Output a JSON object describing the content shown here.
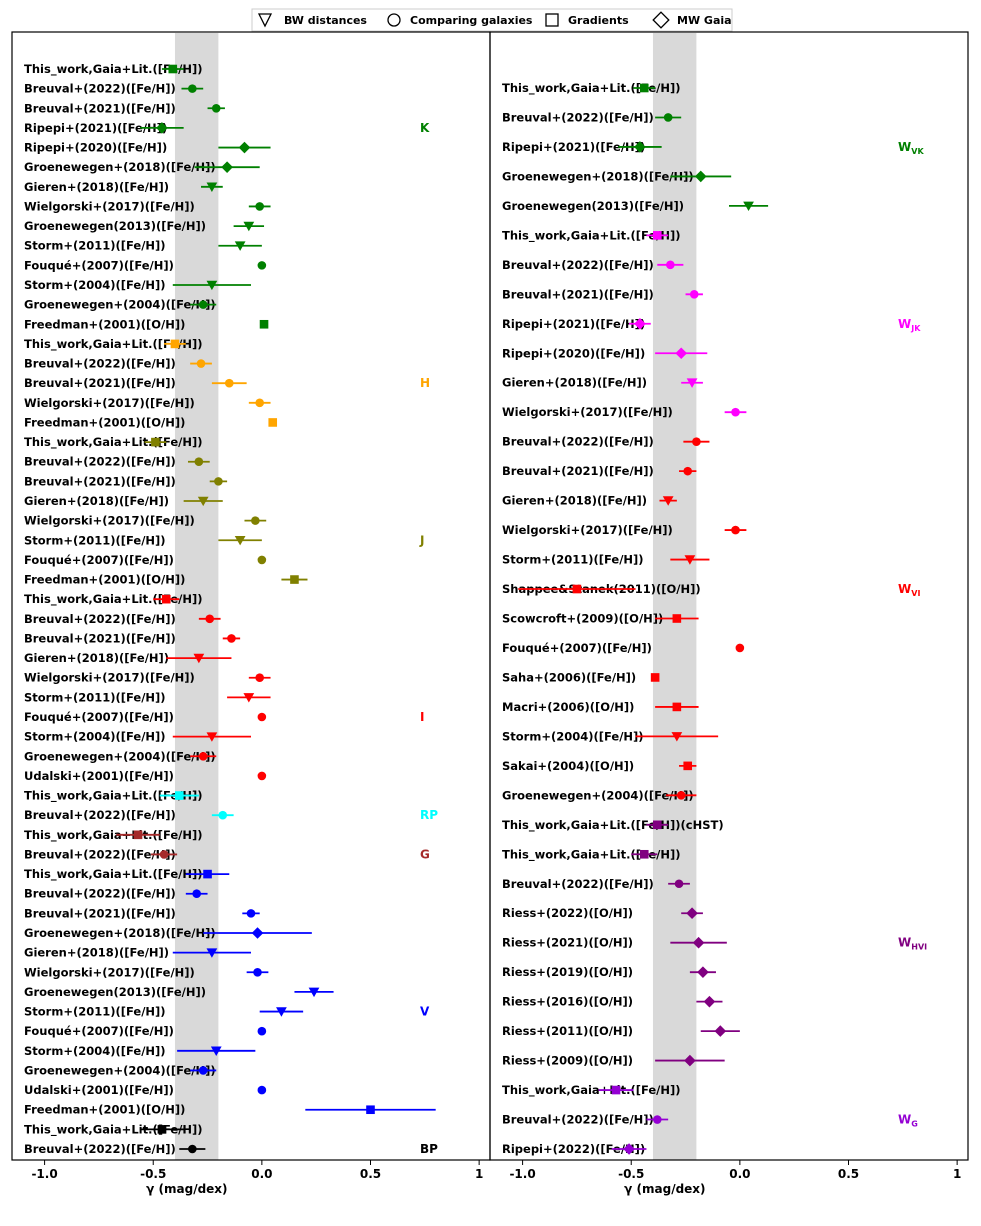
{
  "legend": [
    {
      "marker": "triangle-down",
      "label": "BW distances"
    },
    {
      "marker": "circle",
      "label": "Comparing galaxies"
    },
    {
      "marker": "square",
      "label": "Gradients"
    },
    {
      "marker": "diamond",
      "label": "MW Gaia"
    }
  ],
  "colors": {
    "K": "#008000",
    "H": "#ffa500",
    "J": "#808000",
    "I": "#ff0000",
    "RP": "#00ffff",
    "G": "#a52a2a",
    "V": "#0000ff",
    "BP": "#000000",
    "WVK": "#008000",
    "WJK": "#ff00ff",
    "WVI": "#ff0000",
    "WHVI": "#800080",
    "WG": "#9400d3",
    "band": "#d9d9d9"
  },
  "chart_data": [
    {
      "type": "scatter",
      "panel": "left",
      "xlabel": "γ (mag/dex)",
      "xlim": [
        -1.15,
        1.05
      ],
      "xticks": [
        -1.0,
        -0.5,
        0.0,
        0.5,
        1.0
      ],
      "xtick_labels": [
        "-1.0",
        "-0.5",
        "0.0",
        "0.5",
        "1"
      ],
      "shaded_band": [
        -0.4,
        -0.2
      ],
      "band_labels": [
        {
          "text": "K",
          "color": "#008000",
          "row": 3
        },
        {
          "text": "H",
          "color": "#ffa500",
          "row": 16
        },
        {
          "text": "J",
          "color": "#808000",
          "row": 24
        },
        {
          "text": "I",
          "color": "#ff0000",
          "row": 33
        },
        {
          "text": "RP",
          "color": "#00ffff",
          "row": 38
        },
        {
          "text": "G",
          "color": "#a52a2a",
          "row": 40
        },
        {
          "text": "V",
          "color": "#0000ff",
          "row": 48
        },
        {
          "text": "BP",
          "color": "#000000",
          "row": 55
        }
      ],
      "rows": [
        {
          "label": "This_work,Gaia+Lit.([Fe/H])",
          "x": -0.41,
          "err": 0.05,
          "marker": "square",
          "color": "#008000"
        },
        {
          "label": "Breuval+(2022)([Fe/H])",
          "x": -0.32,
          "err": 0.05,
          "marker": "circle",
          "color": "#008000"
        },
        {
          "label": "Breuval+(2021)([Fe/H])",
          "x": -0.21,
          "err": 0.04,
          "marker": "circle",
          "color": "#008000"
        },
        {
          "label": "Ripepi+(2021)([Fe/H])",
          "x": -0.46,
          "err": 0.1,
          "marker": "diamond",
          "color": "#008000"
        },
        {
          "label": "Ripepi+(2020)([Fe/H])",
          "x": -0.08,
          "err": 0.12,
          "marker": "diamond",
          "color": "#008000"
        },
        {
          "label": "Groenewegen+(2018)([Fe/H])",
          "x": -0.16,
          "err": 0.15,
          "marker": "diamond",
          "color": "#008000"
        },
        {
          "label": "Gieren+(2018)([Fe/H])",
          "x": -0.23,
          "err": 0.05,
          "marker": "triangle-down",
          "color": "#008000"
        },
        {
          "label": "Wielgorski+(2017)([Fe/H])",
          "x": -0.01,
          "err": 0.05,
          "marker": "circle",
          "color": "#008000"
        },
        {
          "label": "Groenewegen(2013)([Fe/H])",
          "x": -0.06,
          "err": 0.07,
          "marker": "triangle-down",
          "color": "#008000"
        },
        {
          "label": "Storm+(2011)([Fe/H])",
          "x": -0.1,
          "err": 0.1,
          "marker": "triangle-down",
          "color": "#008000"
        },
        {
          "label": "Fouqué+(2007)([Fe/H])",
          "x": 0.0,
          "err": 0.0,
          "marker": "circle",
          "color": "#008000"
        },
        {
          "label": "Storm+(2004)([Fe/H])",
          "x": -0.23,
          "err": 0.18,
          "marker": "triangle-down",
          "color": "#008000"
        },
        {
          "label": "Groenewegen+(2004)([Fe/H])",
          "x": -0.27,
          "err": 0.06,
          "marker": "circle",
          "color": "#008000"
        },
        {
          "label": "Freedman+(2001)([O/H])",
          "x": 0.01,
          "err": 0.0,
          "marker": "square",
          "color": "#008000"
        },
        {
          "label": "This_work,Gaia+Lit.([Fe/H])",
          "x": -0.4,
          "err": 0.05,
          "marker": "square",
          "color": "#ffa500"
        },
        {
          "label": "Breuval+(2022)([Fe/H])",
          "x": -0.28,
          "err": 0.05,
          "marker": "circle",
          "color": "#ffa500"
        },
        {
          "label": "Breuval+(2021)([Fe/H])",
          "x": -0.15,
          "err": 0.08,
          "marker": "circle",
          "color": "#ffa500"
        },
        {
          "label": "Wielgorski+(2017)([Fe/H])",
          "x": -0.01,
          "err": 0.05,
          "marker": "circle",
          "color": "#ffa500"
        },
        {
          "label": "Freedman+(2001)([O/H])",
          "x": 0.05,
          "err": 0.0,
          "marker": "square",
          "color": "#ffa500"
        },
        {
          "label": "This_work,Gaia+Lit.([Fe/H])",
          "x": -0.49,
          "err": 0.05,
          "marker": "square",
          "color": "#808000"
        },
        {
          "label": "Breuval+(2022)([Fe/H])",
          "x": -0.29,
          "err": 0.05,
          "marker": "circle",
          "color": "#808000"
        },
        {
          "label": "Breuval+(2021)([Fe/H])",
          "x": -0.2,
          "err": 0.04,
          "marker": "circle",
          "color": "#808000"
        },
        {
          "label": "Gieren+(2018)([Fe/H])",
          "x": -0.27,
          "err": 0.09,
          "marker": "triangle-down",
          "color": "#808000"
        },
        {
          "label": "Wielgorski+(2017)([Fe/H])",
          "x": -0.03,
          "err": 0.05,
          "marker": "circle",
          "color": "#808000"
        },
        {
          "label": "Storm+(2011)([Fe/H])",
          "x": -0.1,
          "err": 0.1,
          "marker": "triangle-down",
          "color": "#808000"
        },
        {
          "label": "Fouqué+(2007)([Fe/H])",
          "x": 0.0,
          "err": 0.0,
          "marker": "circle",
          "color": "#808000"
        },
        {
          "label": "Freedman+(2001)([O/H])",
          "x": 0.15,
          "err": 0.06,
          "marker": "square",
          "color": "#808000"
        },
        {
          "label": "This_work,Gaia+Lit.([Fe/H])",
          "x": -0.44,
          "err": 0.06,
          "marker": "square",
          "color": "#ff0000"
        },
        {
          "label": "Breuval+(2022)([Fe/H])",
          "x": -0.24,
          "err": 0.05,
          "marker": "circle",
          "color": "#ff0000"
        },
        {
          "label": "Breuval+(2021)([Fe/H])",
          "x": -0.14,
          "err": 0.04,
          "marker": "circle",
          "color": "#ff0000"
        },
        {
          "label": "Gieren+(2018)([Fe/H])",
          "x": -0.29,
          "err": 0.15,
          "marker": "triangle-down",
          "color": "#ff0000"
        },
        {
          "label": "Wielgorski+(2017)([Fe/H])",
          "x": -0.01,
          "err": 0.05,
          "marker": "circle",
          "color": "#ff0000"
        },
        {
          "label": "Storm+(2011)([Fe/H])",
          "x": -0.06,
          "err": 0.1,
          "marker": "triangle-down",
          "color": "#ff0000"
        },
        {
          "label": "Fouqué+(2007)([Fe/H])",
          "x": 0.0,
          "err": 0.0,
          "marker": "circle",
          "color": "#ff0000"
        },
        {
          "label": "Storm+(2004)([Fe/H])",
          "x": -0.23,
          "err": 0.18,
          "marker": "triangle-down",
          "color": "#ff0000"
        },
        {
          "label": "Groenewegen+(2004)([Fe/H])",
          "x": -0.27,
          "err": 0.06,
          "marker": "circle",
          "color": "#ff0000"
        },
        {
          "label": "Udalski+(2001)([Fe/H])",
          "x": 0.0,
          "err": 0.0,
          "marker": "circle",
          "color": "#ff0000"
        },
        {
          "label": "This_work,Gaia+Lit.([Fe/H])",
          "x": -0.38,
          "err": 0.09,
          "marker": "square",
          "color": "#00ffff"
        },
        {
          "label": "Breuval+(2022)([Fe/H])",
          "x": -0.18,
          "err": 0.05,
          "marker": "circle",
          "color": "#00ffff"
        },
        {
          "label": "This_work,Gaia+Lit.([Fe/H])",
          "x": -0.57,
          "err": 0.1,
          "marker": "square",
          "color": "#a52a2a"
        },
        {
          "label": "Breuval+(2022)([Fe/H])",
          "x": -0.45,
          "err": 0.06,
          "marker": "circle",
          "color": "#a52a2a"
        },
        {
          "label": "This_work,Gaia+Lit.([Fe/H])",
          "x": -0.25,
          "err": 0.1,
          "marker": "square",
          "color": "#0000ff"
        },
        {
          "label": "Breuval+(2022)([Fe/H])",
          "x": -0.3,
          "err": 0.05,
          "marker": "circle",
          "color": "#0000ff"
        },
        {
          "label": "Breuval+(2021)([Fe/H])",
          "x": -0.05,
          "err": 0.04,
          "marker": "circle",
          "color": "#0000ff"
        },
        {
          "label": "Groenewegen+(2018)([Fe/H])",
          "x": -0.02,
          "err": 0.25,
          "marker": "diamond",
          "color": "#0000ff"
        },
        {
          "label": "Gieren+(2018)([Fe/H])",
          "x": -0.23,
          "err": 0.18,
          "marker": "triangle-down",
          "color": "#0000ff"
        },
        {
          "label": "Wielgorski+(2017)([Fe/H])",
          "x": -0.02,
          "err": 0.05,
          "marker": "circle",
          "color": "#0000ff"
        },
        {
          "label": "Groenewegen(2013)([Fe/H])",
          "x": 0.24,
          "err": 0.09,
          "marker": "triangle-down",
          "color": "#0000ff"
        },
        {
          "label": "Storm+(2011)([Fe/H])",
          "x": 0.09,
          "err": 0.1,
          "marker": "triangle-down",
          "color": "#0000ff"
        },
        {
          "label": "Fouqué+(2007)([Fe/H])",
          "x": 0.0,
          "err": 0.0,
          "marker": "circle",
          "color": "#0000ff"
        },
        {
          "label": "Storm+(2004)([Fe/H])",
          "x": -0.21,
          "err": 0.18,
          "marker": "triangle-down",
          "color": "#0000ff"
        },
        {
          "label": "Groenewegen+(2004)([Fe/H])",
          "x": -0.27,
          "err": 0.06,
          "marker": "circle",
          "color": "#0000ff"
        },
        {
          "label": "Udalski+(2001)([Fe/H])",
          "x": 0.0,
          "err": 0.0,
          "marker": "circle",
          "color": "#0000ff"
        },
        {
          "label": "Freedman+(2001)([O/H])",
          "x": 0.5,
          "err": 0.3,
          "marker": "square",
          "color": "#0000ff"
        },
        {
          "label": "This_work,Gaia+Lit.([Fe/H])",
          "x": -0.46,
          "err": 0.1,
          "marker": "square",
          "color": "#000000"
        },
        {
          "label": "Breuval+(2022)([Fe/H])",
          "x": -0.32,
          "err": 0.06,
          "marker": "circle",
          "color": "#000000"
        }
      ]
    },
    {
      "type": "scatter",
      "panel": "right",
      "xlabel": "γ (mag/dex)",
      "xlim": [
        -1.15,
        1.05
      ],
      "xticks": [
        -1.0,
        -0.5,
        0.0,
        0.5,
        1.0
      ],
      "xtick_labels": [
        "-1.0",
        "-0.5",
        "0.0",
        "0.5",
        "1"
      ],
      "shaded_band": [
        -0.4,
        -0.2
      ],
      "band_labels": [
        {
          "text": "W",
          "sub": "VK",
          "color": "#008000",
          "row": 2
        },
        {
          "text": "W",
          "sub": "JK",
          "color": "#ff00ff",
          "row": 8
        },
        {
          "text": "W",
          "sub": "VI",
          "color": "#ff0000",
          "row": 17
        },
        {
          "text": "W",
          "sub": "HVI",
          "color": "#800080",
          "row": 29
        },
        {
          "text": "W",
          "sub": "G",
          "color": "#9400d3",
          "row": 35
        }
      ],
      "rows": [
        {
          "label": "This_work,Gaia+Lit.([Fe/H])",
          "x": -0.44,
          "err": 0.05,
          "marker": "square",
          "color": "#008000"
        },
        {
          "label": "Breuval+(2022)([Fe/H])",
          "x": -0.33,
          "err": 0.06,
          "marker": "circle",
          "color": "#008000"
        },
        {
          "label": "Ripepi+(2021)([Fe/H])",
          "x": -0.46,
          "err": 0.1,
          "marker": "diamond",
          "color": "#008000"
        },
        {
          "label": "Groenewegen+(2018)([Fe/H])",
          "x": -0.18,
          "err": 0.14,
          "marker": "diamond",
          "color": "#008000"
        },
        {
          "label": "Groenewegen(2013)([Fe/H])",
          "x": 0.04,
          "err": 0.09,
          "marker": "triangle-down",
          "color": "#008000"
        },
        {
          "label": "This_work,Gaia+Lit.([Fe/H])",
          "x": -0.38,
          "err": 0.05,
          "marker": "square",
          "color": "#ff00ff"
        },
        {
          "label": "Breuval+(2022)([Fe/H])",
          "x": -0.32,
          "err": 0.06,
          "marker": "circle",
          "color": "#ff00ff"
        },
        {
          "label": "Breuval+(2021)([Fe/H])",
          "x": -0.21,
          "err": 0.04,
          "marker": "circle",
          "color": "#ff00ff"
        },
        {
          "label": "Ripepi+(2021)([Fe/H])",
          "x": -0.46,
          "err": 0.05,
          "marker": "diamond",
          "color": "#ff00ff"
        },
        {
          "label": "Ripepi+(2020)([Fe/H])",
          "x": -0.27,
          "err": 0.12,
          "marker": "diamond",
          "color": "#ff00ff"
        },
        {
          "label": "Gieren+(2018)([Fe/H])",
          "x": -0.22,
          "err": 0.05,
          "marker": "triangle-down",
          "color": "#ff00ff"
        },
        {
          "label": "Wielgorski+(2017)([Fe/H])",
          "x": -0.02,
          "err": 0.05,
          "marker": "circle",
          "color": "#ff00ff"
        },
        {
          "label": "Breuval+(2022)([Fe/H])",
          "x": -0.2,
          "err": 0.06,
          "marker": "circle",
          "color": "#ff0000"
        },
        {
          "label": "Breuval+(2021)([Fe/H])",
          "x": -0.24,
          "err": 0.04,
          "marker": "circle",
          "color": "#ff0000"
        },
        {
          "label": "Gieren+(2018)([Fe/H])",
          "x": -0.33,
          "err": 0.04,
          "marker": "triangle-down",
          "color": "#ff0000"
        },
        {
          "label": "Wielgorski+(2017)([Fe/H])",
          "x": -0.02,
          "err": 0.05,
          "marker": "circle",
          "color": "#ff0000"
        },
        {
          "label": "Storm+(2011)([Fe/H])",
          "x": -0.23,
          "err": 0.09,
          "marker": "triangle-down",
          "color": "#ff0000"
        },
        {
          "label": "Shappee&Stanek(2011)([O/H])",
          "x": -0.75,
          "err": 0.27,
          "marker": "square",
          "color": "#ff0000"
        },
        {
          "label": "Scowcroft+(2009)([O/H])",
          "x": -0.29,
          "err": 0.1,
          "marker": "square",
          "color": "#ff0000"
        },
        {
          "label": "Fouqué+(2007)([Fe/H])",
          "x": 0.0,
          "err": 0.0,
          "marker": "circle",
          "color": "#ff0000"
        },
        {
          "label": "Saha+(2006)([Fe/H])",
          "x": -0.39,
          "err": 0.0,
          "marker": "square",
          "color": "#ff0000"
        },
        {
          "label": "Macri+(2006)([O/H])",
          "x": -0.29,
          "err": 0.1,
          "marker": "square",
          "color": "#ff0000"
        },
        {
          "label": "Storm+(2004)([Fe/H])",
          "x": -0.29,
          "err": 0.19,
          "marker": "triangle-down",
          "color": "#ff0000"
        },
        {
          "label": "Sakai+(2004)([O/H])",
          "x": -0.24,
          "err": 0.04,
          "marker": "square",
          "color": "#ff0000"
        },
        {
          "label": "Groenewegen+(2004)([Fe/H])",
          "x": -0.27,
          "err": 0.07,
          "marker": "circle",
          "color": "#ff0000"
        },
        {
          "label": "This_work,Gaia+Lit.([Fe/H])(cHST)",
          "x": -0.38,
          "err": 0.05,
          "marker": "square",
          "color": "#800080"
        },
        {
          "label": "This_work,Gaia+Lit.([Fe/H])",
          "x": -0.44,
          "err": 0.06,
          "marker": "square",
          "color": "#800080"
        },
        {
          "label": "Breuval+(2022)([Fe/H])",
          "x": -0.28,
          "err": 0.05,
          "marker": "circle",
          "color": "#800080"
        },
        {
          "label": "Riess+(2022)([O/H])",
          "x": -0.22,
          "err": 0.05,
          "marker": "diamond",
          "color": "#800080"
        },
        {
          "label": "Riess+(2021)([O/H])",
          "x": -0.19,
          "err": 0.13,
          "marker": "diamond",
          "color": "#800080"
        },
        {
          "label": "Riess+(2019)([O/H])",
          "x": -0.17,
          "err": 0.06,
          "marker": "diamond",
          "color": "#800080"
        },
        {
          "label": "Riess+(2016)([O/H])",
          "x": -0.14,
          "err": 0.06,
          "marker": "diamond",
          "color": "#800080"
        },
        {
          "label": "Riess+(2011)([O/H])",
          "x": -0.09,
          "err": 0.09,
          "marker": "diamond",
          "color": "#800080"
        },
        {
          "label": "Riess+(2009)([O/H])",
          "x": -0.23,
          "err": 0.16,
          "marker": "diamond",
          "color": "#800080"
        },
        {
          "label": "This_work,Gaia+Lit.([Fe/H])",
          "x": -0.57,
          "err": 0.08,
          "marker": "square",
          "color": "#9400d3"
        },
        {
          "label": "Breuval+(2022)([Fe/H])",
          "x": -0.38,
          "err": 0.05,
          "marker": "circle",
          "color": "#9400d3"
        },
        {
          "label": "Ripepi+(2022)([Fe/H])",
          "x": -0.51,
          "err": 0.08,
          "marker": "diamond",
          "color": "#9400d3"
        }
      ]
    }
  ]
}
